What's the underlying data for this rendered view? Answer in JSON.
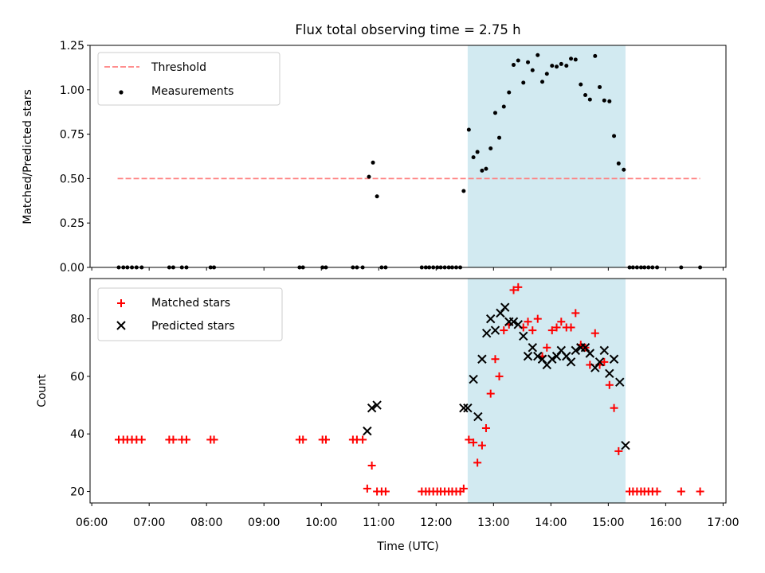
{
  "figure": {
    "title": "Flux total observing time = 2.75 h",
    "xlabel": "Time (UTC)"
  },
  "colors": {
    "threshold": "#ff7f7f",
    "measurement": "#000000",
    "matched": "#ff0000",
    "predicted": "#000000",
    "window_fill": "#add8e6"
  },
  "chart_data": [
    {
      "type": "scatter",
      "panel": "top",
      "title": "Flux total observing time = 2.75 h",
      "xlabel": "",
      "ylabel": "Matched/Predicted stars",
      "x_unit": "hours UTC",
      "xlim": [
        5.97,
        17.05
      ],
      "ylim": [
        0,
        1.25
      ],
      "yticks": [
        0.0,
        0.25,
        0.5,
        0.75,
        1.0,
        1.25
      ],
      "ytick_labels": [
        "0.00",
        "0.25",
        "0.50",
        "0.75",
        "1.00",
        "1.25"
      ],
      "xticks": [
        6,
        7,
        8,
        9,
        10,
        11,
        12,
        13,
        14,
        15,
        16,
        17
      ],
      "shaded_interval": [
        12.55,
        15.3
      ],
      "legend": {
        "position": "top-left",
        "entries": [
          "Threshold",
          "Measurements"
        ]
      },
      "series": [
        {
          "name": "Threshold",
          "kind": "dashed-line",
          "x": [
            6.45,
            16.6
          ],
          "y": [
            0.5,
            0.5
          ]
        },
        {
          "name": "Measurements",
          "kind": "dots",
          "points": [
            [
              6.47,
              0
            ],
            [
              6.55,
              0
            ],
            [
              6.62,
              0
            ],
            [
              6.7,
              0
            ],
            [
              6.78,
              0
            ],
            [
              6.87,
              0
            ],
            [
              7.35,
              0
            ],
            [
              7.42,
              0
            ],
            [
              7.57,
              0
            ],
            [
              7.65,
              0
            ],
            [
              8.07,
              0
            ],
            [
              8.13,
              0
            ],
            [
              9.62,
              0
            ],
            [
              9.68,
              0
            ],
            [
              10.02,
              0
            ],
            [
              10.08,
              0
            ],
            [
              10.55,
              0
            ],
            [
              10.62,
              0
            ],
            [
              10.72,
              0
            ],
            [
              10.83,
              0.51
            ],
            [
              10.9,
              0.59
            ],
            [
              10.97,
              0.4
            ],
            [
              11.05,
              0
            ],
            [
              11.12,
              0
            ],
            [
              11.75,
              0
            ],
            [
              11.82,
              0
            ],
            [
              11.88,
              0
            ],
            [
              11.95,
              0
            ],
            [
              12.02,
              0
            ],
            [
              12.08,
              0
            ],
            [
              12.15,
              0
            ],
            [
              12.22,
              0
            ],
            [
              12.28,
              0
            ],
            [
              12.35,
              0
            ],
            [
              12.42,
              0
            ],
            [
              12.48,
              0.43
            ],
            [
              12.57,
              0.775
            ],
            [
              12.65,
              0.62
            ],
            [
              12.72,
              0.65
            ],
            [
              12.8,
              0.545
            ],
            [
              12.87,
              0.555
            ],
            [
              12.95,
              0.67
            ],
            [
              13.03,
              0.87
            ],
            [
              13.1,
              0.73
            ],
            [
              13.18,
              0.905
            ],
            [
              13.27,
              0.985
            ],
            [
              13.35,
              1.14
            ],
            [
              13.43,
              1.165
            ],
            [
              13.52,
              1.04
            ],
            [
              13.6,
              1.155
            ],
            [
              13.68,
              1.11
            ],
            [
              13.77,
              1.195
            ],
            [
              13.85,
              1.045
            ],
            [
              13.93,
              1.09
            ],
            [
              14.02,
              1.135
            ],
            [
              14.1,
              1.13
            ],
            [
              14.18,
              1.145
            ],
            [
              14.27,
              1.135
            ],
            [
              14.35,
              1.175
            ],
            [
              14.43,
              1.17
            ],
            [
              14.52,
              1.03
            ],
            [
              14.6,
              0.97
            ],
            [
              14.68,
              0.945
            ],
            [
              14.77,
              1.19
            ],
            [
              14.85,
              1.015
            ],
            [
              14.93,
              0.94
            ],
            [
              15.02,
              0.935
            ],
            [
              15.1,
              0.74
            ],
            [
              15.18,
              0.585
            ],
            [
              15.27,
              0.55
            ],
            [
              15.37,
              0
            ],
            [
              15.43,
              0
            ],
            [
              15.5,
              0
            ],
            [
              15.57,
              0
            ],
            [
              15.63,
              0
            ],
            [
              15.7,
              0
            ],
            [
              15.77,
              0
            ],
            [
              15.85,
              0
            ],
            [
              16.27,
              0
            ],
            [
              16.6,
              0
            ]
          ]
        }
      ]
    },
    {
      "type": "scatter",
      "panel": "bottom",
      "title": "",
      "xlabel": "Time (UTC)",
      "ylabel": "Count",
      "x_unit": "hours UTC",
      "xlim": [
        5.97,
        17.05
      ],
      "ylim": [
        16,
        94
      ],
      "yticks": [
        20,
        40,
        60,
        80
      ],
      "xticks": [
        6,
        7,
        8,
        9,
        10,
        11,
        12,
        13,
        14,
        15,
        16,
        17
      ],
      "xtick_labels": [
        "06:00",
        "07:00",
        "08:00",
        "09:00",
        "10:00",
        "11:00",
        "12:00",
        "13:00",
        "14:00",
        "15:00",
        "16:00",
        "17:00"
      ],
      "shaded_interval": [
        12.55,
        15.3
      ],
      "legend": {
        "position": "top-left",
        "entries": [
          "Matched stars",
          "Predicted stars"
        ]
      },
      "series": [
        {
          "name": "Matched stars",
          "marker": "plus",
          "points": [
            [
              6.47,
              38
            ],
            [
              6.55,
              38
            ],
            [
              6.62,
              38
            ],
            [
              6.7,
              38
            ],
            [
              6.78,
              38
            ],
            [
              6.87,
              38
            ],
            [
              7.35,
              38
            ],
            [
              7.42,
              38
            ],
            [
              7.57,
              38
            ],
            [
              7.65,
              38
            ],
            [
              8.07,
              38
            ],
            [
              8.13,
              38
            ],
            [
              9.62,
              38
            ],
            [
              9.68,
              38
            ],
            [
              10.02,
              38
            ],
            [
              10.08,
              38
            ],
            [
              10.55,
              38
            ],
            [
              10.62,
              38
            ],
            [
              10.72,
              38
            ],
            [
              10.8,
              21
            ],
            [
              10.88,
              29
            ],
            [
              10.97,
              20
            ],
            [
              11.05,
              20
            ],
            [
              11.12,
              20
            ],
            [
              11.75,
              20
            ],
            [
              11.82,
              20
            ],
            [
              11.88,
              20
            ],
            [
              11.95,
              20
            ],
            [
              12.02,
              20
            ],
            [
              12.08,
              20
            ],
            [
              12.15,
              20
            ],
            [
              12.22,
              20
            ],
            [
              12.28,
              20
            ],
            [
              12.35,
              20
            ],
            [
              12.42,
              20
            ],
            [
              12.48,
              21
            ],
            [
              12.57,
              38
            ],
            [
              12.65,
              37
            ],
            [
              12.72,
              30
            ],
            [
              12.8,
              36
            ],
            [
              12.87,
              42
            ],
            [
              12.95,
              54
            ],
            [
              13.03,
              66
            ],
            [
              13.1,
              60
            ],
            [
              13.18,
              76
            ],
            [
              13.27,
              78
            ],
            [
              13.35,
              90
            ],
            [
              13.43,
              91
            ],
            [
              13.52,
              77
            ],
            [
              13.6,
              79
            ],
            [
              13.68,
              76
            ],
            [
              13.77,
              80
            ],
            [
              13.85,
              67
            ],
            [
              13.93,
              70
            ],
            [
              14.02,
              76
            ],
            [
              14.1,
              77
            ],
            [
              14.18,
              79
            ],
            [
              14.27,
              77
            ],
            [
              14.35,
              77
            ],
            [
              14.43,
              82
            ],
            [
              14.52,
              71
            ],
            [
              14.6,
              70
            ],
            [
              14.68,
              64
            ],
            [
              14.77,
              75
            ],
            [
              14.85,
              64
            ],
            [
              14.93,
              65
            ],
            [
              15.02,
              57
            ],
            [
              15.1,
              49
            ],
            [
              15.18,
              34
            ],
            [
              15.37,
              20
            ],
            [
              15.43,
              20
            ],
            [
              15.5,
              20
            ],
            [
              15.57,
              20
            ],
            [
              15.63,
              20
            ],
            [
              15.7,
              20
            ],
            [
              15.77,
              20
            ],
            [
              15.85,
              20
            ],
            [
              16.27,
              20
            ],
            [
              16.6,
              20
            ]
          ]
        },
        {
          "name": "Predicted stars",
          "marker": "x",
          "points": [
            [
              10.8,
              41
            ],
            [
              10.88,
              49
            ],
            [
              10.97,
              50
            ],
            [
              12.48,
              49
            ],
            [
              12.55,
              49
            ],
            [
              12.65,
              59
            ],
            [
              12.73,
              46
            ],
            [
              12.8,
              66
            ],
            [
              12.88,
              75
            ],
            [
              12.95,
              80
            ],
            [
              13.03,
              76
            ],
            [
              13.12,
              82
            ],
            [
              13.2,
              84
            ],
            [
              13.27,
              79
            ],
            [
              13.35,
              79
            ],
            [
              13.43,
              78
            ],
            [
              13.52,
              74
            ],
            [
              13.6,
              67
            ],
            [
              13.68,
              70
            ],
            [
              13.77,
              67
            ],
            [
              13.85,
              66
            ],
            [
              13.93,
              64
            ],
            [
              14.02,
              66
            ],
            [
              14.1,
              67
            ],
            [
              14.18,
              69
            ],
            [
              14.27,
              67
            ],
            [
              14.35,
              65
            ],
            [
              14.43,
              69
            ],
            [
              14.52,
              70
            ],
            [
              14.6,
              70
            ],
            [
              14.68,
              68
            ],
            [
              14.77,
              63
            ],
            [
              14.85,
              65
            ],
            [
              14.93,
              69
            ],
            [
              15.02,
              61
            ],
            [
              15.1,
              66
            ],
            [
              15.2,
              58
            ],
            [
              15.3,
              36
            ]
          ]
        }
      ]
    }
  ]
}
